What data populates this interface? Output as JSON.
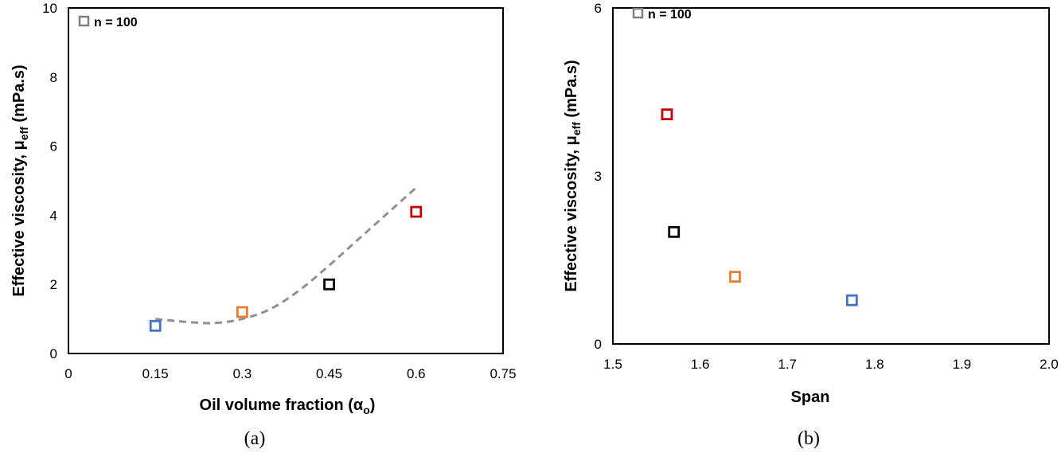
{
  "chart_data": [
    {
      "type": "scatter",
      "panel_label": "(a)",
      "xlabel_main": "Oil volume fraction (α",
      "xlabel_sub": "o",
      "xlabel_end": ")",
      "ylabel_main": "Effective viscosity, μ",
      "ylabel_sub": "eff",
      "ylabel_end": " (mPa.s)",
      "xlim": [
        0,
        0.75
      ],
      "ylim": [
        0,
        10
      ],
      "xticks": [
        "0",
        "0.15",
        "0.3",
        "0.45",
        "0.6",
        "0.75"
      ],
      "xtick_values": [
        0,
        0.15,
        0.3,
        0.45,
        0.6,
        0.75
      ],
      "yticks": [
        "0",
        "2",
        "4",
        "6",
        "8",
        "10"
      ],
      "ytick_values": [
        0,
        2,
        4,
        6,
        8,
        10
      ],
      "legend": "n = 100",
      "legend_position": "top-left",
      "grid": false,
      "points": [
        {
          "x": 0.15,
          "y": 0.8,
          "color": "#4472C4"
        },
        {
          "x": 0.3,
          "y": 1.2,
          "color": "#ED7D31"
        },
        {
          "x": 0.45,
          "y": 2.0,
          "color": "#000000"
        },
        {
          "x": 0.6,
          "y": 4.1,
          "color": "#C00000"
        }
      ],
      "trend_line": {
        "style": "dashed",
        "color": "#909090",
        "x": [
          0.15,
          0.2,
          0.25,
          0.3,
          0.35,
          0.4,
          0.45,
          0.5,
          0.55,
          0.6
        ],
        "y": [
          1.0,
          0.92,
          0.88,
          1.0,
          1.3,
          1.85,
          2.55,
          3.3,
          4.05,
          4.8
        ]
      }
    },
    {
      "type": "scatter",
      "panel_label": "(b)",
      "xlabel_main": "Span",
      "ylabel_main": "Effective viscosity, μ",
      "ylabel_sub": "eff",
      "ylabel_end": " (mPa.s)",
      "xlim": [
        1.5,
        2.0
      ],
      "ylim": [
        0,
        6
      ],
      "xticks": [
        "1.5",
        "1.6",
        "1.7",
        "1.8",
        "1.9",
        "2.0"
      ],
      "xtick_values": [
        1.5,
        1.6,
        1.7,
        1.8,
        1.9,
        2.0
      ],
      "yticks": [
        "0",
        "3",
        "6"
      ],
      "ytick_values": [
        0,
        3,
        6
      ],
      "legend": "n = 100",
      "legend_position": "top-left",
      "grid": false,
      "points": [
        {
          "x": 1.562,
          "y": 4.1,
          "color": "#C00000"
        },
        {
          "x": 1.57,
          "y": 2.0,
          "color": "#000000"
        },
        {
          "x": 1.64,
          "y": 1.2,
          "color": "#ED7D31"
        },
        {
          "x": 1.774,
          "y": 0.78,
          "color": "#4472C4"
        }
      ]
    }
  ],
  "colors": {
    "legend_marker": "#808080",
    "axis": "#000000"
  }
}
